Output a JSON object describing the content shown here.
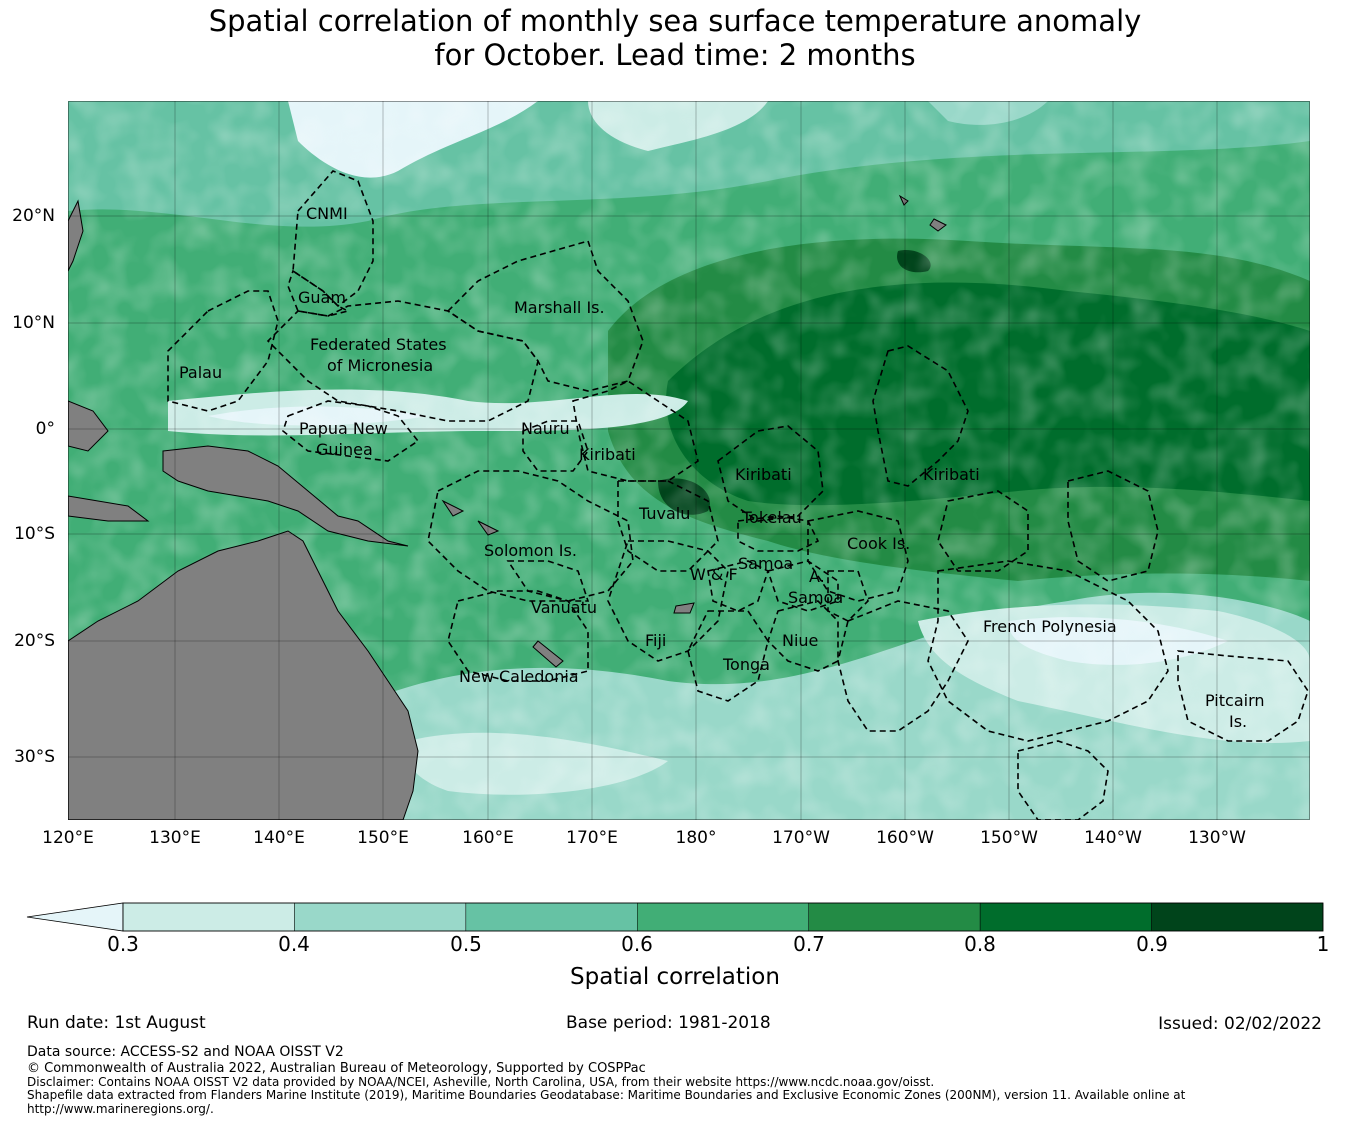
{
  "title": {
    "line1": "Spatial correlation of monthly sea surface temperature anomaly",
    "line2": "for October. Lead time: 2 months"
  },
  "axes": {
    "lon_ticks": [
      "120°E",
      "130°E",
      "140°E",
      "150°E",
      "160°E",
      "170°E",
      "180°",
      "170°W",
      "160°W",
      "150°W",
      "140°W",
      "130°W"
    ],
    "lat_ticks": [
      "20°N",
      "10°N",
      "0°",
      "10°S",
      "20°S",
      "30°S"
    ]
  },
  "regions": [
    "CNMI",
    "Guam",
    "Marshall Is.",
    "Federated States",
    "of Micronesia",
    "Palau",
    "Papua New",
    "Guinea",
    "Nauru",
    "Kiribati",
    "Kiribati",
    "Kiribati",
    "Tuvalu",
    "Tokelau",
    "Cook Is.",
    "Solomon Is.",
    "Samoa",
    "W & F",
    "A.",
    "Samoa",
    "Vanuatu",
    "Fiji",
    "Niue",
    "Tonga",
    "New Caledonia",
    "French Polynesia",
    "Pitcairn",
    "Is."
  ],
  "colorbar": {
    "ticks": [
      "0.3",
      "0.4",
      "0.5",
      "0.6",
      "0.7",
      "0.8",
      "0.9",
      "1"
    ],
    "colors": [
      "#e5f5f9",
      "#ccece6",
      "#99d8c9",
      "#66c2a4",
      "#41ae76",
      "#238b45",
      "#006d2c",
      "#00441b"
    ],
    "label": "Spatial correlation"
  },
  "land_color": "#808080",
  "footer": {
    "run_date": "Run date: 1st August",
    "base_period": "Base period: 1981-2018",
    "issued": "Issued: 02/02/2022",
    "data_source": "Data source: ACCESS-S2 and NOAA OISST V2",
    "copyright": "© Commonwealth of Australia 2022, Australian Bureau of Meteorology, Supported by COSPPac",
    "disclaimer": "Disclaimer: Contains NOAA OISST V2 data provided by NOAA/NCEI, Asheville, North Carolina, USA, from their website https://www.ncdc.noaa.gov/oisst.",
    "shapefile1": "Shapefile data extracted from Flanders Marine Institute (2019), Maritime Boundaries Geodatabase: Maritime Boundaries and Exclusive Economic Zones (200NM), version 11. Available online at",
    "shapefile2": "http://www.marineregions.org/."
  }
}
